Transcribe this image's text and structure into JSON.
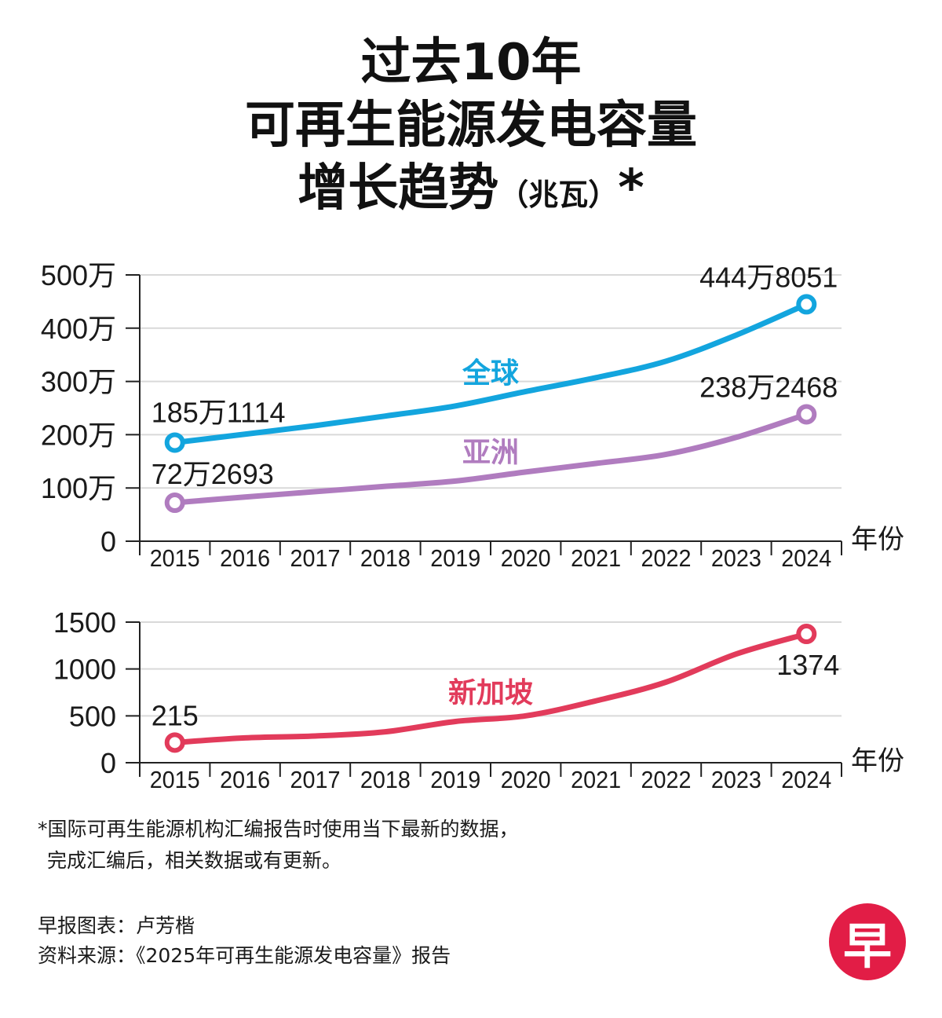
{
  "title": {
    "line1": "过去10年",
    "line2": "可再生能源发电容量",
    "line3": "增长趋势",
    "unit": "（兆瓦）",
    "star": "*"
  },
  "colors": {
    "global": "#13a5de",
    "asia": "#b07cbf",
    "singapore": "#e23b5b",
    "grid": "#d9d9d9",
    "axis": "#222222",
    "logo": "#e21d46"
  },
  "chart_data": [
    {
      "type": "line",
      "categories": [
        "2015",
        "2016",
        "2017",
        "2018",
        "2019",
        "2020",
        "2021",
        "2022",
        "2023",
        "2024"
      ],
      "xlabel": "年份",
      "ylim": [
        0,
        5000000
      ],
      "yticks": [
        0,
        1000000,
        2000000,
        3000000,
        4000000,
        5000000
      ],
      "ytick_labels": [
        "0",
        "100万",
        "200万",
        "300万",
        "400万",
        "500万"
      ],
      "grid": true,
      "series": [
        {
          "name": "全球",
          "values": [
            1851114,
            2010000,
            2170000,
            2350000,
            2540000,
            2810000,
            3070000,
            3380000,
            3870000,
            4448051
          ],
          "end_labels": {
            "first": "185万1114",
            "last": "444万8051"
          }
        },
        {
          "name": "亚洲",
          "values": [
            722693,
            830000,
            930000,
            1030000,
            1130000,
            1300000,
            1460000,
            1630000,
            1950000,
            2382468
          ],
          "end_labels": {
            "first": "72万2693",
            "last": "238万2468"
          }
        }
      ]
    },
    {
      "type": "line",
      "categories": [
        "2015",
        "2016",
        "2017",
        "2018",
        "2019",
        "2020",
        "2021",
        "2022",
        "2023",
        "2024"
      ],
      "xlabel": "年份",
      "ylim": [
        0,
        1500
      ],
      "yticks": [
        0,
        500,
        1000,
        1500
      ],
      "ytick_labels": [
        "0",
        "500",
        "1000",
        "1500"
      ],
      "grid": true,
      "series": [
        {
          "name": "新加坡",
          "values": [
            215,
            265,
            285,
            330,
            440,
            500,
            660,
            860,
            1160,
            1374
          ],
          "end_labels": {
            "first": "215",
            "last": "1374"
          }
        }
      ]
    }
  ],
  "footnote": {
    "line1": "*国际可再生能源机构汇编报告时使用当下最新的数据，",
    "line2": "完成汇编后，相关数据或有更新。"
  },
  "credits": {
    "chart_by": "早报图表：卢芳楷",
    "source": "资料来源：《2025年可再生能源发电容量》报告"
  },
  "logo": {
    "text": "早"
  }
}
